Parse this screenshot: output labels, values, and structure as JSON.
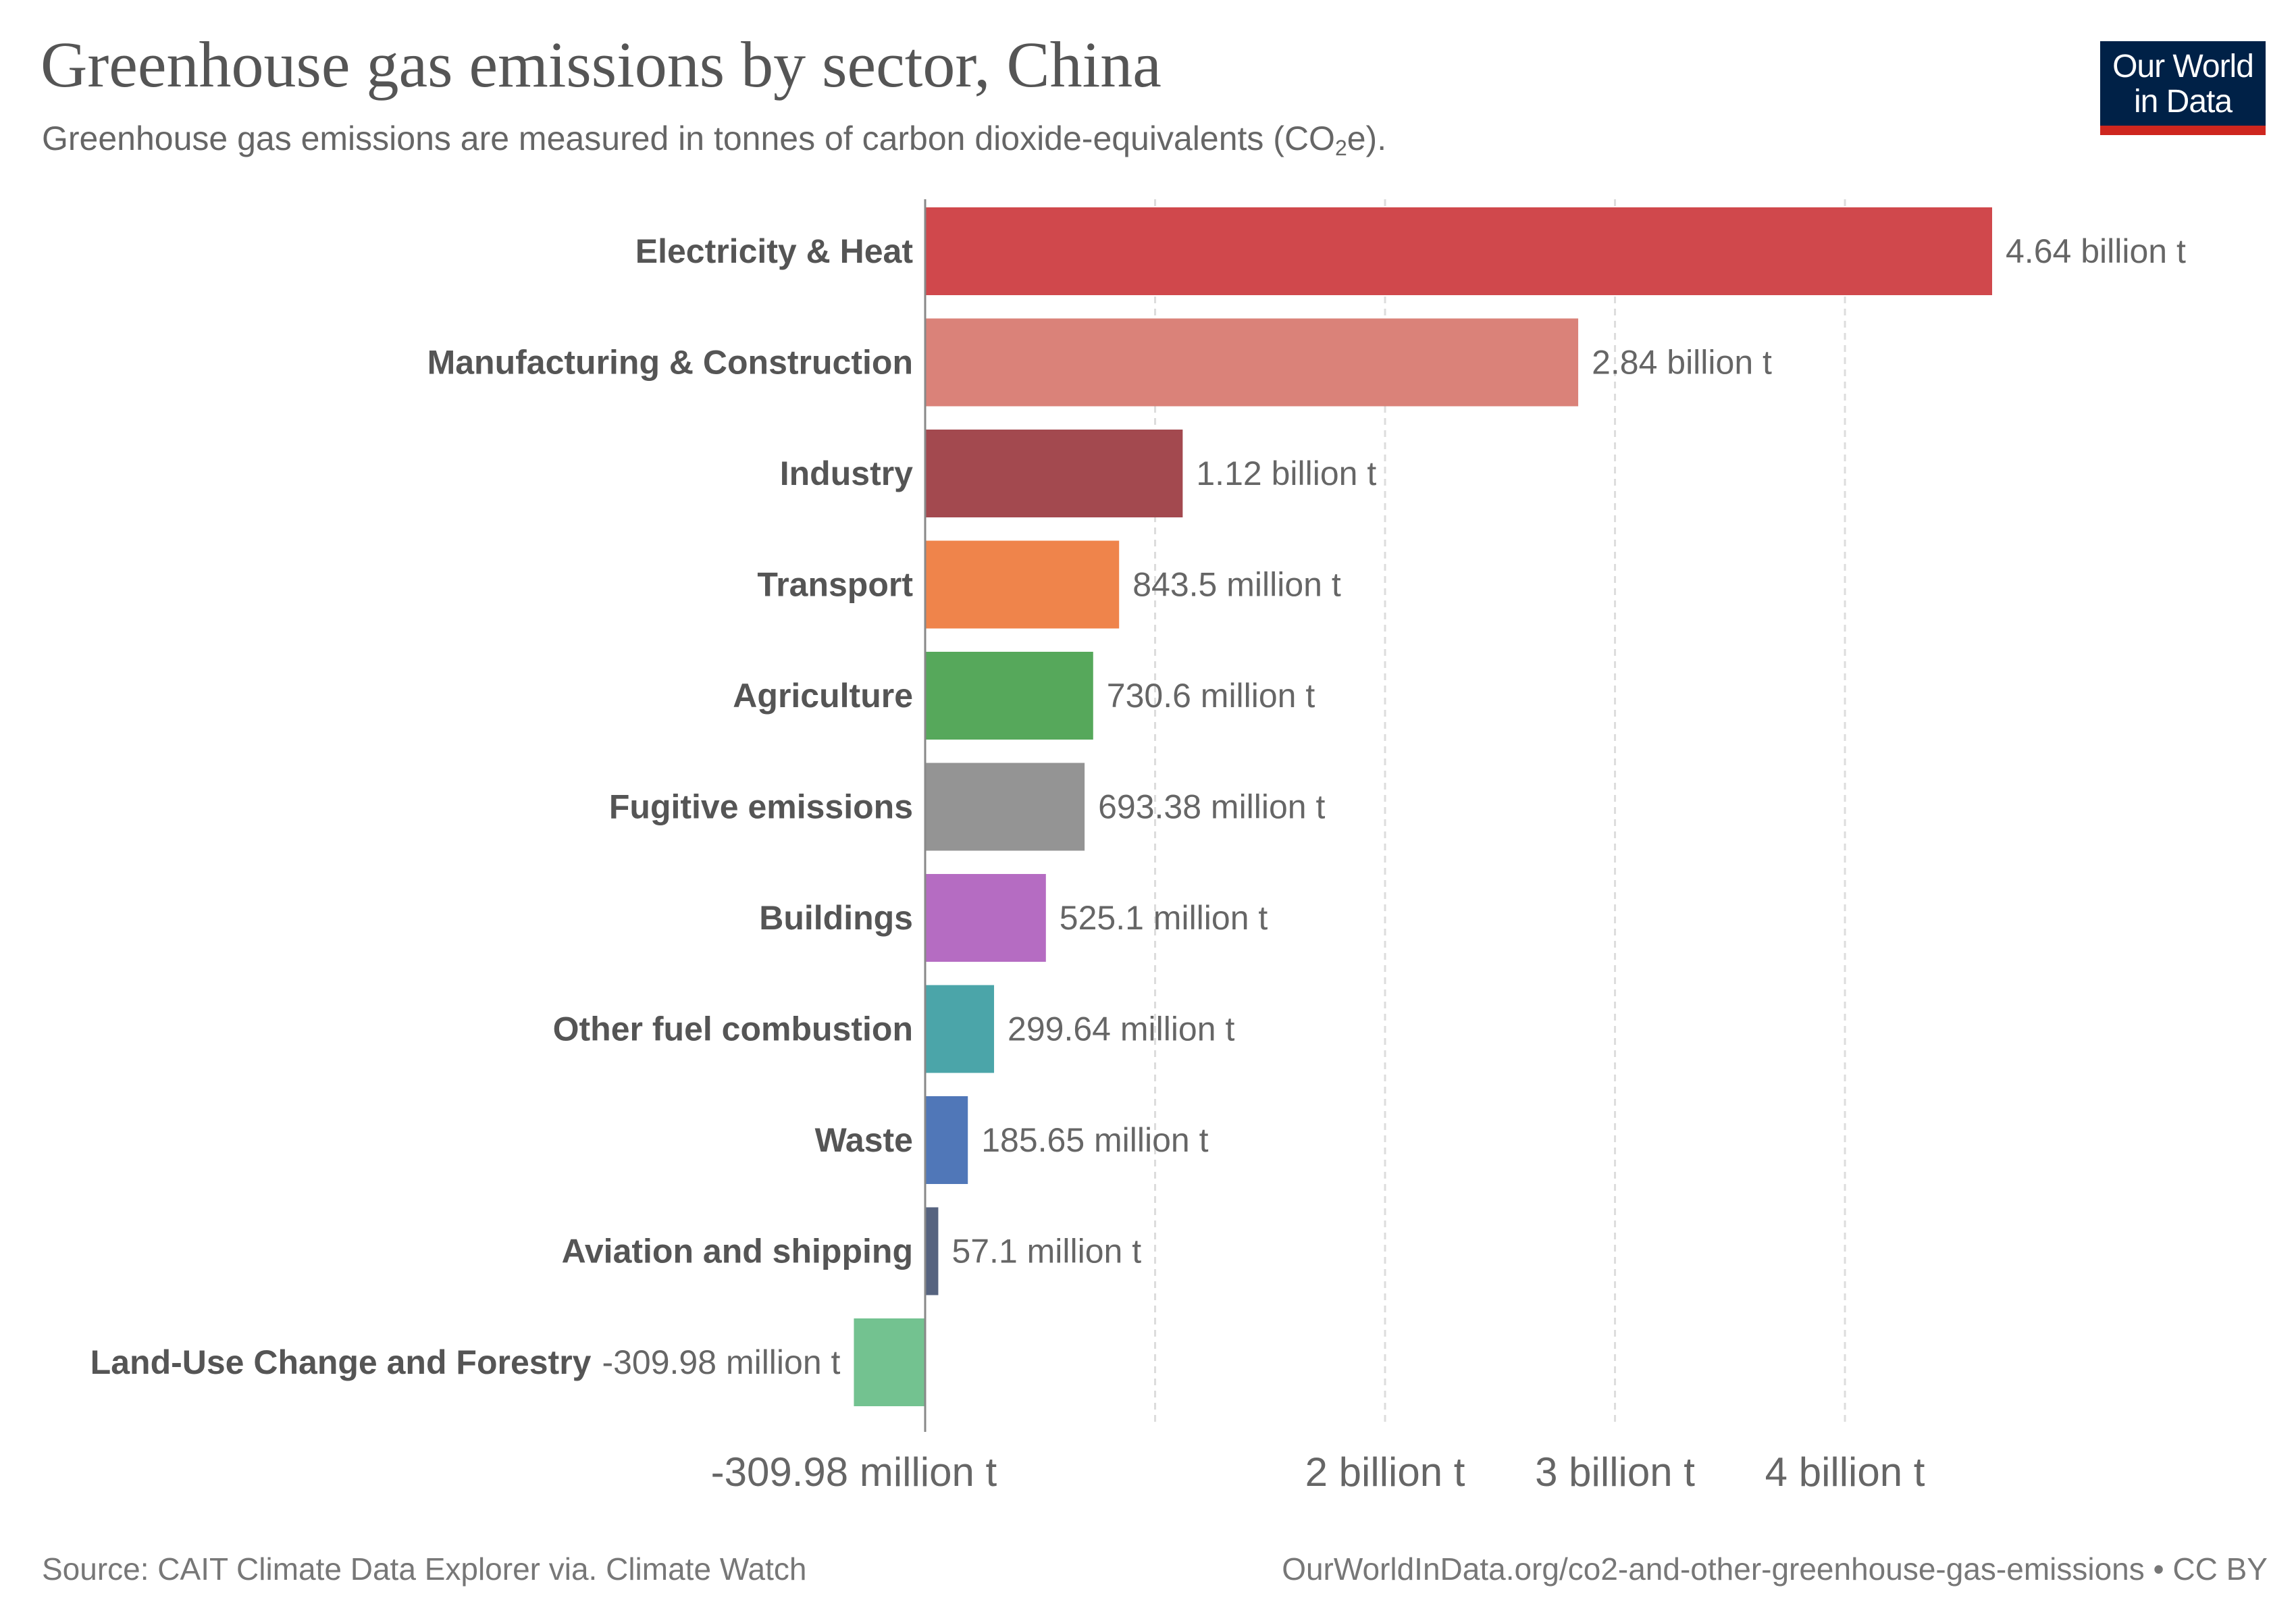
{
  "header": {
    "title": "Greenhouse gas emissions by sector, China",
    "subtitle_main": "Greenhouse gas emissions are measured in tonnes of carbon dioxide-equivalents (CO",
    "subtitle_sub": "2",
    "subtitle_end": "e).",
    "logo_line1": "Our World",
    "logo_line2": "in Data"
  },
  "footer": {
    "source": "Source: CAIT Climate Data Explorer via. Climate Watch",
    "url": "OurWorldInData.org/co2-and-other-greenhouse-gas-emissions • CC BY"
  },
  "colors": {
    "logo_bg": "#002147",
    "logo_accent": "#ce261e",
    "text": "#555555"
  },
  "chart_data": {
    "type": "bar",
    "orientation": "horizontal",
    "unit": "tonnes CO2e",
    "categories": [
      "Electricity & Heat",
      "Manufacturing & Construction",
      "Industry",
      "Transport",
      "Agriculture",
      "Fugitive emissions",
      "Buildings",
      "Other fuel combustion",
      "Waste",
      "Aviation and shipping",
      "Land-Use Change and Forestry"
    ],
    "values": [
      4640000000,
      2840000000,
      1120000000,
      843500000,
      730600000,
      693380000,
      525100000,
      299640000,
      185650000,
      57100000,
      -309980000
    ],
    "value_labels": [
      "4.64 billion t",
      "2.84 billion t",
      "1.12 billion t",
      "843.5 million t",
      "730.6 million t",
      "693.38 million t",
      "525.1 million t",
      "299.64 million t",
      "185.65 million t",
      "57.1 million t",
      "-309.98 million t"
    ],
    "bar_colors": [
      "#d0484c",
      "#da8279",
      "#a3494f",
      "#ef844b",
      "#56a85b",
      "#949494",
      "#b56cc2",
      "#4ba5a9",
      "#5077b8",
      "#56637f",
      "#73c290"
    ],
    "xlim": [
      -309980000,
      4640000000
    ],
    "xticks": [
      {
        "value": -309980000,
        "label": "-309.98 million t"
      },
      {
        "value": 1000000000,
        "label": ""
      },
      {
        "value": 2000000000,
        "label": "2 billion t"
      },
      {
        "value": 3000000000,
        "label": "3 billion t"
      },
      {
        "value": 4000000000,
        "label": "4 billion t"
      }
    ],
    "grid": true
  }
}
